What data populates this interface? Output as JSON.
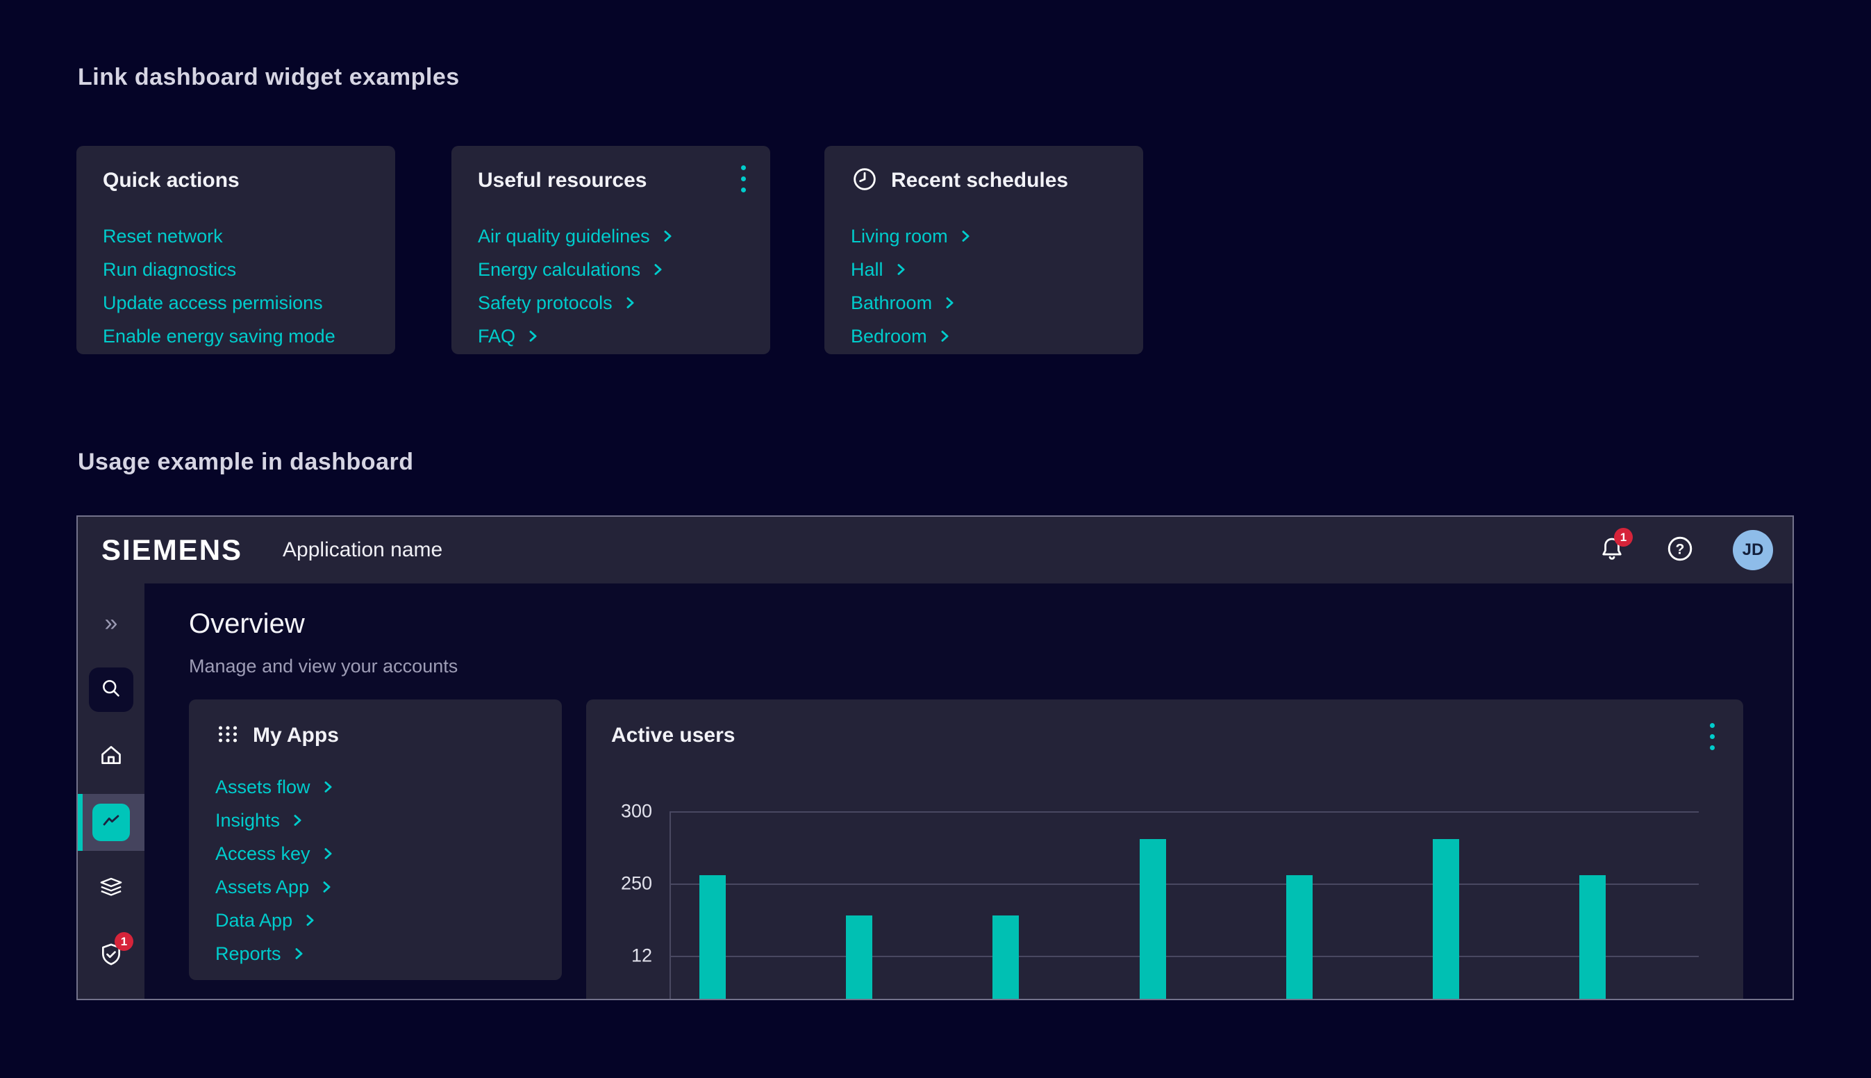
{
  "colors": {
    "accent": "#00cccc",
    "accent2": "#00c5b9",
    "bar": "#00c0b3",
    "badge": "#d6243a",
    "avatarbg": "#8ebce9"
  },
  "sections": {
    "widgets_title": "Link dashboard widget examples",
    "usage_title": "Usage example in dashboard"
  },
  "widgets": {
    "quick_actions": {
      "title": "Quick actions",
      "links": [
        "Reset network",
        "Run diagnostics",
        "Update access permisions",
        "Enable energy saving mode"
      ]
    },
    "useful_resources": {
      "title": "Useful resources",
      "menu_icon": "kebab-menu-icon",
      "links": [
        "Air quality guidelines",
        "Energy calculations",
        "Safety protocols",
        "FAQ"
      ]
    },
    "recent_schedules": {
      "title": "Recent schedules",
      "icon": "clock-icon",
      "links": [
        "Living room",
        "Hall",
        "Bathroom",
        "Bedroom"
      ]
    }
  },
  "dashboard": {
    "header": {
      "brand": "SIEMENS",
      "app_name": "Application name",
      "notification_count": "1",
      "avatar_initials": "JD"
    },
    "sidebar": {
      "items": [
        "collapse",
        "search",
        "home",
        "analytics (active)",
        "layers",
        "shield-check"
      ],
      "shield_badge_count": "1"
    },
    "page": {
      "title": "Overview",
      "subtitle": "Manage and view your accounts"
    },
    "my_apps": {
      "title": "My Apps",
      "icon": "apps-grid-icon",
      "links": [
        "Assets flow",
        "Insights",
        "Access key",
        "Assets App",
        "Data App",
        "Reports"
      ]
    },
    "active_users": {
      "title": "Active users",
      "menu_icon": "kebab-menu-icon"
    }
  },
  "chart_data": {
    "type": "bar",
    "title": "Active users",
    "y_tick_labels": [
      "300",
      "250",
      "12"
    ],
    "values": [
      256,
      228,
      228,
      281,
      256,
      281,
      256
    ],
    "ylim_top": 300,
    "grid": true,
    "x_tick_labels": [],
    "note_bars_clipped_at_bottom": true
  }
}
